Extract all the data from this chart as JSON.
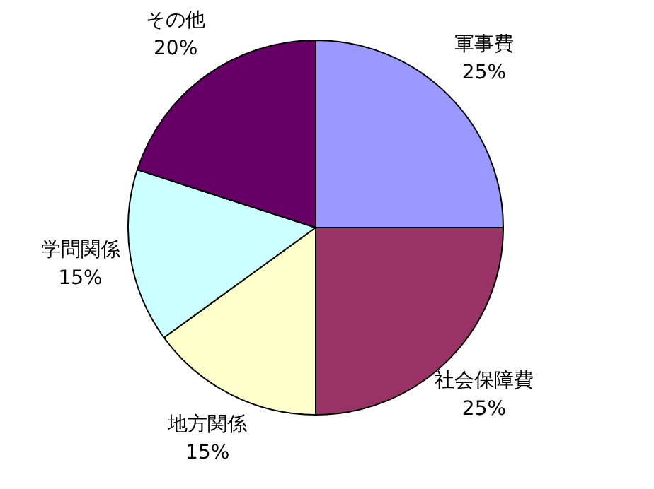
{
  "chart_data": {
    "type": "pie",
    "categories": [
      "軍事費",
      "社会保障費",
      "地方関係",
      "学問関係",
      "その他"
    ],
    "values": [
      25,
      25,
      15,
      15,
      20
    ],
    "value_labels": [
      "25%",
      "25%",
      "15%",
      "15%",
      "20%"
    ],
    "colors": [
      "#9999ff",
      "#993366",
      "#ffffcc",
      "#ccffff",
      "#660066"
    ],
    "legend": false
  }
}
